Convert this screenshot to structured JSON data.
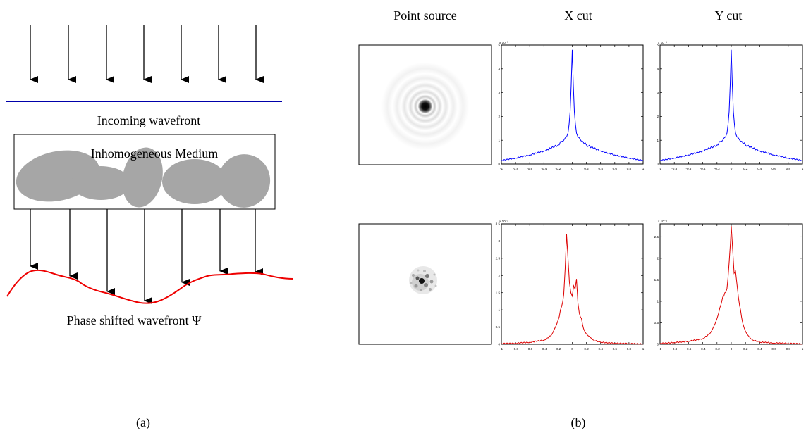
{
  "panel_a": {
    "top_wavefront_label": "Incoming wavefront",
    "medium_label": "Inhomogeneous Medium",
    "bottom_wavefront_label": "Phase shifted wavefront Ψ",
    "caption": "(a)",
    "colors": {
      "top_wavefront": "#0000aa",
      "bottom_wavefront": "#ee0000",
      "blobs": "#a6a6a6",
      "arrows": "#000000"
    }
  },
  "panel_b": {
    "caption": "(b)",
    "column_headers": [
      "Point source",
      "X cut",
      "Y cut"
    ]
  },
  "chart_data": [
    {
      "type": "line",
      "id": "top-x-cut",
      "color": "#0000ff",
      "exponent_label": "x 10⁻³",
      "xlim": [
        -1,
        1
      ],
      "ylim": [
        0,
        5
      ],
      "x_ticks": [
        "-1",
        "-0.8",
        "-0.6",
        "-0.4",
        "-0.2",
        "0",
        "0.2",
        "0.4",
        "0.6",
        "0.8",
        "1"
      ],
      "y_ticks": [
        "0",
        "1",
        "2",
        "3",
        "4",
        "5"
      ],
      "x": [
        -1,
        -0.8,
        -0.6,
        -0.4,
        -0.2,
        -0.15,
        -0.1,
        -0.06,
        -0.03,
        0,
        0.03,
        0.06,
        0.1,
        0.15,
        0.2,
        0.4,
        0.6,
        0.8,
        1
      ],
      "y": [
        0.15,
        0.25,
        0.38,
        0.55,
        0.8,
        0.95,
        1.1,
        1.3,
        2.2,
        4.8,
        2.2,
        1.3,
        1.1,
        0.95,
        0.8,
        0.55,
        0.38,
        0.25,
        0.15
      ]
    },
    {
      "type": "line",
      "id": "top-y-cut",
      "color": "#0000ff",
      "exponent_label": "x 10⁻³",
      "xlim": [
        -1,
        1
      ],
      "ylim": [
        0,
        5
      ],
      "x_ticks": [
        "-1",
        "-0.8",
        "-0.6",
        "-0.4",
        "-0.2",
        "0",
        "0.2",
        "0.4",
        "0.6",
        "0.8",
        "1"
      ],
      "y_ticks": [
        "0",
        "1",
        "2",
        "3",
        "4",
        "5"
      ],
      "x": [
        -1,
        -0.8,
        -0.6,
        -0.4,
        -0.2,
        -0.15,
        -0.1,
        -0.06,
        -0.03,
        0,
        0.03,
        0.06,
        0.1,
        0.15,
        0.2,
        0.4,
        0.6,
        0.8,
        1
      ],
      "y": [
        0.15,
        0.25,
        0.38,
        0.55,
        0.8,
        0.95,
        1.1,
        1.3,
        2.2,
        4.8,
        2.2,
        1.3,
        1.1,
        0.95,
        0.8,
        0.55,
        0.38,
        0.25,
        0.15
      ]
    },
    {
      "type": "line",
      "id": "bottom-x-cut",
      "color": "#dd0000",
      "exponent_label": "x 10⁻³",
      "xlim": [
        -1,
        1
      ],
      "ylim": [
        0,
        3.5
      ],
      "x_ticks": [
        "-1",
        "-0.8",
        "-0.6",
        "-0.4",
        "-0.2",
        "0",
        "0.2",
        "0.4",
        "0.6",
        "0.8",
        "1"
      ],
      "y_ticks": [
        "0",
        "0.5",
        "1",
        "1.5",
        "2",
        "2.5",
        "3",
        "3.5"
      ],
      "x": [
        -1,
        -0.8,
        -0.6,
        -0.4,
        -0.3,
        -0.25,
        -0.2,
        -0.15,
        -0.12,
        -0.1,
        -0.08,
        -0.06,
        -0.04,
        -0.02,
        0,
        0.02,
        0.04,
        0.06,
        0.08,
        0.1,
        0.13,
        0.16,
        0.2,
        0.25,
        0.3,
        0.4,
        0.6,
        0.8,
        1
      ],
      "y": [
        0.02,
        0.03,
        0.06,
        0.12,
        0.25,
        0.45,
        0.7,
        1.1,
        1.45,
        2.2,
        3.2,
        2.5,
        1.8,
        1.5,
        1.4,
        1.7,
        1.6,
        1.9,
        1.2,
        0.9,
        0.75,
        0.45,
        0.3,
        0.22,
        0.12,
        0.06,
        0.03,
        0.02,
        0.01
      ]
    },
    {
      "type": "line",
      "id": "bottom-y-cut",
      "color": "#dd0000",
      "exponent_label": "x 10⁻³",
      "xlim": [
        -1,
        1
      ],
      "ylim": [
        0,
        2.8
      ],
      "x_ticks": [
        "-1",
        "-0.8",
        "-0.6",
        "-0.4",
        "-0.2",
        "0",
        "0.2",
        "0.4",
        "0.6",
        "0.8",
        "1"
      ],
      "y_ticks": [
        "0",
        "0.5",
        "1",
        "1.5",
        "2",
        "2.5"
      ],
      "x": [
        -1,
        -0.8,
        -0.6,
        -0.4,
        -0.3,
        -0.25,
        -0.2,
        -0.16,
        -0.12,
        -0.09,
        -0.06,
        -0.03,
        -0.01,
        0,
        0.02,
        0.04,
        0.06,
        0.08,
        0.1,
        0.13,
        0.16,
        0.2,
        0.25,
        0.3,
        0.4,
        0.6,
        0.8,
        1
      ],
      "y": [
        0.02,
        0.04,
        0.07,
        0.13,
        0.25,
        0.4,
        0.6,
        0.85,
        1.1,
        1.2,
        1.3,
        1.9,
        2.4,
        2.75,
        2.2,
        1.65,
        1.7,
        1.4,
        1.1,
        0.8,
        0.5,
        0.3,
        0.18,
        0.1,
        0.05,
        0.03,
        0.02,
        0.01
      ]
    }
  ]
}
